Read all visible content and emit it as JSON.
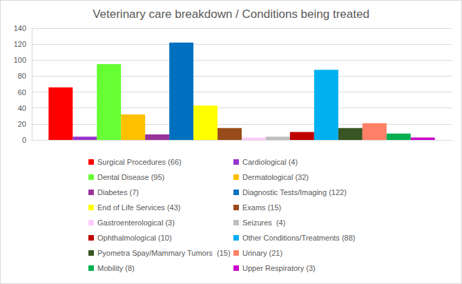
{
  "chart_data": {
    "type": "bar",
    "title": "Veterinary care breakdown / Conditions being treated",
    "categories": [
      null
    ],
    "series": [
      {
        "name": "Surgical Procedures (66)",
        "color": "#ff0000",
        "values": [
          66
        ]
      },
      {
        "name": "Cardiological (4)",
        "color": "#9933cc",
        "values": [
          4
        ]
      },
      {
        "name": "Dental Disease (95)",
        "color": "#66ff33",
        "values": [
          95
        ]
      },
      {
        "name": "Dermatological (32)",
        "color": "#ffc000",
        "values": [
          32
        ]
      },
      {
        "name": "Diabetes (7)",
        "color": "#993399",
        "values": [
          7
        ]
      },
      {
        "name": "Diagnostic Tests/Imaging (122)",
        "color": "#0070c0",
        "values": [
          122
        ]
      },
      {
        "name": "End of Life Services (43)",
        "color": "#ffff00",
        "values": [
          43
        ]
      },
      {
        "name": "Exams (15)",
        "color": "#994c1a",
        "values": [
          15
        ]
      },
      {
        "name": "Gastroenterological (3)",
        "color": "#ffccff",
        "values": [
          3
        ]
      },
      {
        "name": "Seizures  (4)",
        "color": "#bfbfbf",
        "values": [
          4
        ]
      },
      {
        "name": "Ophthalmological (10)",
        "color": "#c00000",
        "values": [
          10
        ]
      },
      {
        "name": "Other Conditions/Treatments (88)",
        "color": "#00b0f0",
        "values": [
          88
        ]
      },
      {
        "name": "Pyometra Spay/Mammary Tumors  (15)",
        "color": "#375623",
        "values": [
          15
        ]
      },
      {
        "name": "Urinary (21)",
        "color": "#ff8066",
        "values": [
          21
        ]
      },
      {
        "name": "Mobility (8)",
        "color": "#00b050",
        "values": [
          8
        ]
      },
      {
        "name": "Upper Respiratory (3)",
        "color": "#cc00cc",
        "values": [
          3
        ]
      }
    ],
    "ylim": [
      0,
      140
    ],
    "yticks": [
      0,
      20,
      40,
      60,
      80,
      100,
      120,
      140
    ],
    "grid": true,
    "legend": "bottom",
    "tick_labels": "y"
  }
}
